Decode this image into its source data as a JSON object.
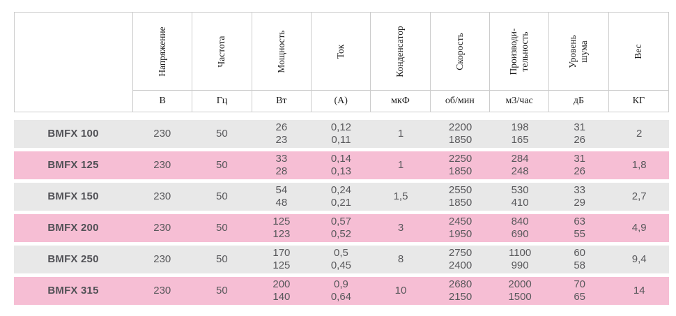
{
  "colors": {
    "row_gray": "#e8e8e8",
    "row_pink": "#f6bed4",
    "border": "#cccccc",
    "header_text": "#1c1c1c",
    "body_text": "#58585b"
  },
  "chart_data": {
    "type": "table",
    "columns": [
      {
        "label": "Напряжение",
        "unit": "В"
      },
      {
        "label": "Частота",
        "unit": "Гц"
      },
      {
        "label": "Мощность",
        "unit": "Вт"
      },
      {
        "label": "Ток",
        "unit": "(А)"
      },
      {
        "label": "Конденсатор",
        "unit": "мкФ"
      },
      {
        "label": "Скорость",
        "unit": "об/мин"
      },
      {
        "label": "Производи-\nтельность",
        "unit": "м3/час"
      },
      {
        "label": "Уровень\nшума",
        "unit": "дБ"
      },
      {
        "label": "Вес",
        "unit": "КГ"
      }
    ],
    "rows": [
      {
        "model": "BMFX 100",
        "highlight": false,
        "values": [
          "230",
          "50",
          "26\n23",
          "0,12\n0,11",
          "1",
          "2200\n1850",
          "198\n165",
          "31\n26",
          "2"
        ]
      },
      {
        "model": "BMFX 125",
        "highlight": true,
        "values": [
          "230",
          "50",
          "33\n28",
          "0,14\n0,13",
          "1",
          "2250\n1850",
          "284\n248",
          "31\n26",
          "1,8"
        ]
      },
      {
        "model": "BMFX 150",
        "highlight": false,
        "values": [
          "230",
          "50",
          "54\n48",
          "0,24\n0,21",
          "1,5",
          "2550\n1850",
          "530\n410",
          "33\n29",
          "2,7"
        ]
      },
      {
        "model": "BMFX 200",
        "highlight": true,
        "values": [
          "230",
          "50",
          "125\n123",
          "0,57\n0,52",
          "3",
          "2450\n1950",
          "840\n690",
          "63\n55",
          "4,9"
        ]
      },
      {
        "model": "BMFX 250",
        "highlight": false,
        "values": [
          "230",
          "50",
          "170\n125",
          "0,5\n0,45",
          "8",
          "2750\n2400",
          "1100\n990",
          "60\n58",
          "9,4"
        ]
      },
      {
        "model": "BMFX 315",
        "highlight": true,
        "values": [
          "230",
          "50",
          "200\n140",
          "0,9\n0,64",
          "10",
          "2680\n2150",
          "2000\n1500",
          "70\n65",
          "14"
        ]
      }
    ]
  }
}
